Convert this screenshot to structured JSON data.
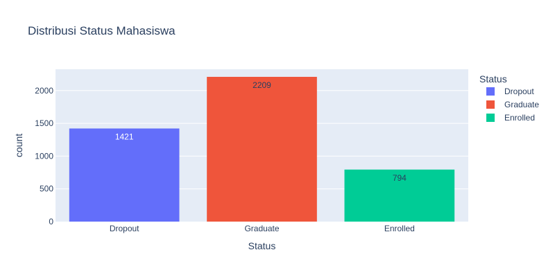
{
  "chart_data": {
    "type": "bar",
    "title": "Distribusi Status Mahasiswa",
    "xlabel": "Status",
    "ylabel": "count",
    "categories": [
      "Dropout",
      "Graduate",
      "Enrolled"
    ],
    "values": [
      1421,
      2209,
      794
    ],
    "data_labels": [
      "1421",
      "2209",
      "794"
    ],
    "colors": [
      "#636efa",
      "#ef553b",
      "#00cc96"
    ],
    "label_colors": [
      "#ffffff",
      "#2a3f5f",
      "#2a3f5f"
    ],
    "ylim": [
      0,
      2325
    ],
    "yticks": [
      0,
      500,
      1000,
      1500,
      2000
    ],
    "ytick_labels": [
      "0",
      "500",
      "1000",
      "1500",
      "2000"
    ],
    "grid": true,
    "plot_background": "#e5ecf6",
    "legend": {
      "title": "Status",
      "placement": "right",
      "entries": [
        "Dropout",
        "Graduate",
        "Enrolled"
      ]
    }
  }
}
